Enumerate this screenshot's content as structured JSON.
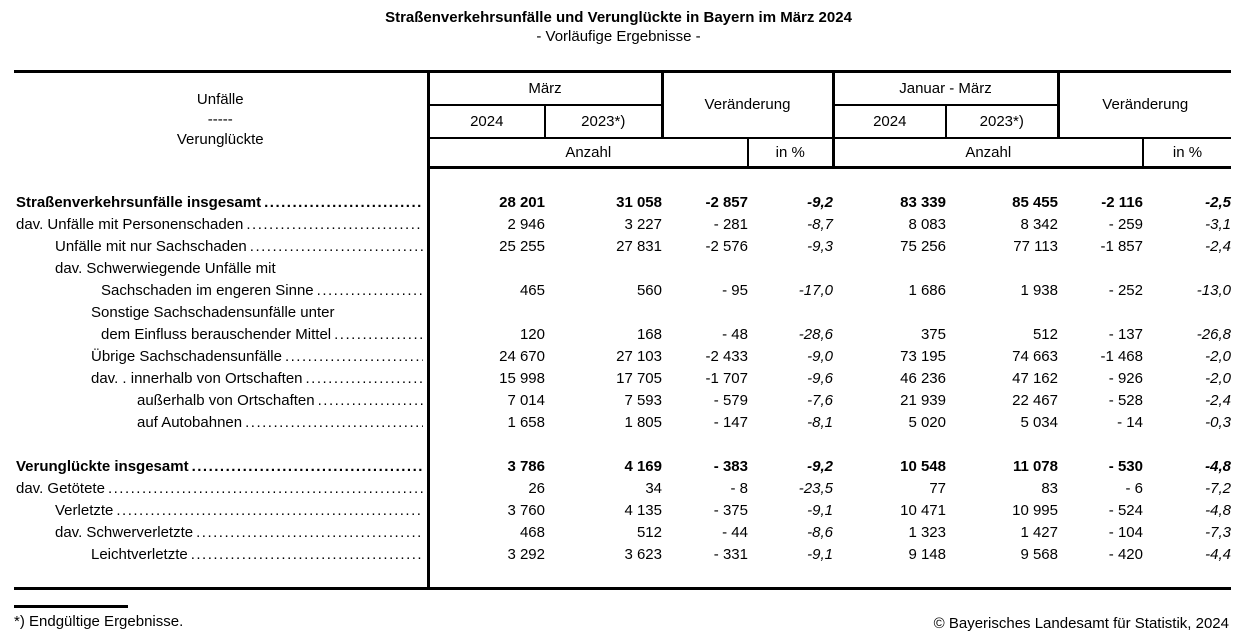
{
  "title": "Straßenverkehrsunfälle und Verunglückte in Bayern im März 2024",
  "subtitle": "- Vorläufige Ergebnisse -",
  "table": {
    "stub": {
      "line1": "Unfälle",
      "line2": "-----",
      "line3": "Verunglückte"
    },
    "header": {
      "maerz": "März",
      "jan_maerz": "Januar - März",
      "veraenderung1": "Veränderung",
      "veraenderung2": "Veränderung"
    },
    "years": {
      "m2024": "2024",
      "m2023": "2023*)",
      "j2024": "2024",
      "j2023": "2023*)"
    },
    "units": {
      "anzahl1": "Anzahl",
      "pct1": "in %",
      "anzahl2": "Anzahl",
      "pct2": "in %"
    },
    "rows": [
      {
        "type": "spacer",
        "height": 10
      },
      {
        "label": "Straßenverkehrsunfälle insgesamt",
        "indent": 0,
        "bold": true,
        "dots": true,
        "values": [
          "28 201",
          "31 058",
          "-2 857",
          "-9,2",
          "83 339",
          "85 455",
          "-2 116",
          "-2,5"
        ]
      },
      {
        "label": "dav. Unfälle mit Personenschaden",
        "indent": 0,
        "bold": false,
        "dots": true,
        "values": [
          "2 946",
          "3 227",
          "- 281",
          "-8,7",
          "8 083",
          "8 342",
          "- 259",
          "-3,1"
        ]
      },
      {
        "label": "Unfälle mit nur Sachschaden",
        "indent": 1,
        "bold": false,
        "dots": true,
        "values": [
          "25 255",
          "27 831",
          "-2 576",
          "-9,3",
          "75 256",
          "77 113",
          "-1 857",
          "-2,4"
        ]
      },
      {
        "label": "dav. Schwerwiegende Unfälle mit",
        "indent": 1,
        "bold": false,
        "dots": false,
        "values": null
      },
      {
        "label": "Sachschaden im engeren Sinne",
        "indent": "2b",
        "bold": false,
        "dots": true,
        "values": [
          "465",
          "560",
          "- 95",
          "-17,0",
          "1 686",
          "1 938",
          "- 252",
          "-13,0"
        ]
      },
      {
        "label": "Sonstige Sachschadensunfälle unter",
        "indent": 2,
        "bold": false,
        "dots": false,
        "values": null
      },
      {
        "label": "dem Einfluss berauschender Mittel",
        "indent": "2b",
        "bold": false,
        "dots": true,
        "values": [
          "120",
          "168",
          "- 48",
          "-28,6",
          "375",
          "512",
          "- 137",
          "-26,8"
        ]
      },
      {
        "label": "Übrige Sachschadensunfälle",
        "indent": 2,
        "bold": false,
        "dots": true,
        "values": [
          "24 670",
          "27 103",
          "-2 433",
          "-9,0",
          "73 195",
          "74 663",
          "-1 468",
          "-2,0"
        ]
      },
      {
        "label": "dav. . innerhalb von Ortschaften",
        "indent": 2,
        "bold": false,
        "dots": true,
        "values": [
          "15 998",
          "17 705",
          "-1 707",
          "-9,6",
          "46 236",
          "47 162",
          "- 926",
          "-2,0"
        ]
      },
      {
        "label": "außerhalb von Ortschaften",
        "indent": 3,
        "bold": false,
        "dots": true,
        "values": [
          "7 014",
          "7 593",
          "- 579",
          "-7,6",
          "21 939",
          "22 467",
          "- 528",
          "-2,4"
        ]
      },
      {
        "label": "auf Autobahnen",
        "indent": 3,
        "bold": false,
        "dots": true,
        "values": [
          "1 658",
          "1 805",
          "- 147",
          "-8,1",
          "5 020",
          "5 034",
          "- 14",
          "-0,3"
        ]
      },
      {
        "type": "spacer",
        "height": 22
      },
      {
        "label": "Verunglückte insgesamt",
        "indent": 0,
        "bold": true,
        "dots": true,
        "values": [
          "3 786",
          "4 169",
          "- 383",
          "-9,2",
          "10 548",
          "11 078",
          "- 530",
          "-4,8"
        ]
      },
      {
        "label": "dav. Getötete",
        "indent": 0,
        "bold": false,
        "dots": true,
        "values": [
          "26",
          "34",
          "- 8",
          "-23,5",
          "77",
          "83",
          "- 6",
          "-7,2"
        ]
      },
      {
        "label": "Verletzte",
        "indent": 1,
        "bold": false,
        "dots": true,
        "values": [
          "3 760",
          "4 135",
          "- 375",
          "-9,1",
          "10 471",
          "10 995",
          "- 524",
          "-4,8"
        ]
      },
      {
        "label": "dav. Schwerverletzte",
        "indent": 1,
        "bold": false,
        "dots": true,
        "values": [
          "468",
          "512",
          "- 44",
          "-8,6",
          "1 323",
          "1 427",
          "- 104",
          "-7,3"
        ]
      },
      {
        "label": "Leichtverletzte",
        "indent": 2,
        "bold": false,
        "dots": true,
        "values": [
          "3 292",
          "3 623",
          "- 331",
          "-9,1",
          "9 148",
          "9 568",
          "- 420",
          "-4,4"
        ]
      },
      {
        "type": "spacer",
        "height": 8
      }
    ]
  },
  "footnote": "*) Endgültige Ergebnisse.",
  "copyright": "© Bayerisches Landesamt für Statistik, 2024"
}
